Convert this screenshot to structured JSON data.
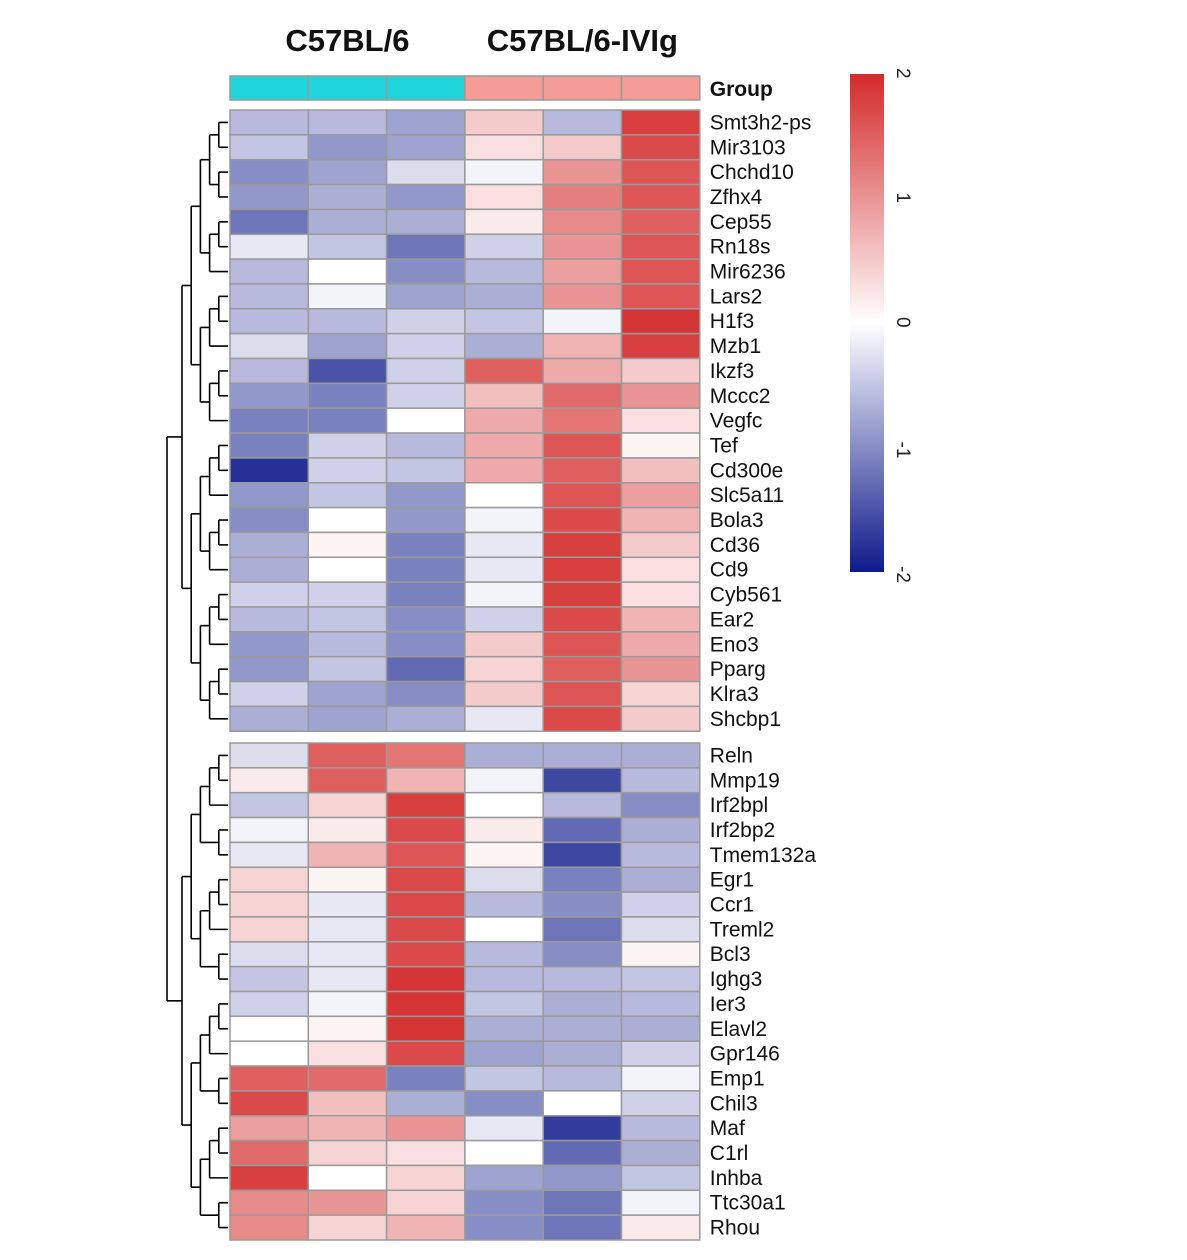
{
  "chart_data": {
    "type": "heatmap",
    "title": "",
    "column_groups": [
      {
        "label": "C57BL/6",
        "color": "#20d4dc",
        "columns": 3
      },
      {
        "label": "C57BL/6-IVIg",
        "color": "#f59c97",
        "columns": 3
      }
    ],
    "group_legend_label": "Group",
    "color_scale": {
      "min": -2,
      "max": 2,
      "low_color": "#0e1a8a",
      "mid_color": "#ffffff",
      "high_color": "#d42a2a",
      "ticks": [
        2,
        1,
        0,
        -1,
        -2
      ],
      "tick_labels": [
        "2",
        "1",
        "0",
        "-1",
        "-2"
      ]
    },
    "clusters": [
      {
        "rows": [
          "Smt3h2-ps",
          "Mir3103",
          "Chchd10",
          "Zfhx4",
          "Cep55",
          "Rn18s",
          "Mir6236",
          "Lars2",
          "H1f3",
          "Mzb1",
          "Ikzf3",
          "Mccc2",
          "Vegfc",
          "Tef",
          "Cd300e",
          "Slc5a11",
          "Bola3",
          "Cd36",
          "Cd9",
          "Cyb561",
          "Ear2",
          "Eno3",
          "Pparg",
          "Klra3",
          "Shcbp1"
        ],
        "values": [
          [
            -0.6,
            -0.6,
            -0.8,
            0.5,
            -0.6,
            1.8
          ],
          [
            -0.5,
            -0.9,
            -0.8,
            0.3,
            0.5,
            1.7
          ],
          [
            -1.0,
            -0.8,
            -0.3,
            -0.1,
            1.0,
            1.6
          ],
          [
            -0.9,
            -0.7,
            -0.9,
            0.3,
            1.2,
            1.6
          ],
          [
            -1.2,
            -0.7,
            -0.7,
            0.2,
            1.1,
            1.5
          ],
          [
            -0.2,
            -0.5,
            -1.2,
            -0.4,
            1.0,
            1.6
          ],
          [
            -0.6,
            0.0,
            -1.0,
            -0.6,
            0.9,
            1.6
          ],
          [
            -0.6,
            -0.1,
            -0.8,
            -0.7,
            1.0,
            1.6
          ],
          [
            -0.6,
            -0.6,
            -0.4,
            -0.5,
            -0.1,
            1.9
          ],
          [
            -0.3,
            -0.8,
            -0.4,
            -0.7,
            0.7,
            1.8
          ],
          [
            -0.6,
            -1.5,
            -0.4,
            1.5,
            0.8,
            0.5
          ],
          [
            -0.9,
            -1.1,
            -0.4,
            0.6,
            1.4,
            1.0
          ],
          [
            -1.1,
            -1.1,
            0.0,
            0.8,
            1.3,
            0.3
          ],
          [
            -1.1,
            -0.4,
            -0.6,
            0.8,
            1.6,
            0.1
          ],
          [
            -1.8,
            -0.4,
            -0.5,
            0.8,
            1.5,
            0.6
          ],
          [
            -0.9,
            -0.5,
            -0.9,
            0.0,
            1.6,
            0.9
          ],
          [
            -1.0,
            0.0,
            -0.9,
            -0.1,
            1.7,
            0.7
          ],
          [
            -0.7,
            0.1,
            -1.1,
            -0.2,
            1.8,
            0.5
          ],
          [
            -0.7,
            0.0,
            -1.1,
            -0.2,
            1.8,
            0.3
          ],
          [
            -0.4,
            -0.4,
            -1.1,
            -0.1,
            1.8,
            0.3
          ],
          [
            -0.6,
            -0.5,
            -1.0,
            -0.4,
            1.7,
            0.7
          ],
          [
            -0.9,
            -0.6,
            -1.0,
            0.5,
            1.6,
            0.8
          ],
          [
            -0.9,
            -0.5,
            -1.3,
            0.4,
            1.5,
            1.0
          ],
          [
            -0.4,
            -0.8,
            -1.0,
            0.5,
            1.6,
            0.4
          ],
          [
            -0.7,
            -0.8,
            -0.7,
            -0.2,
            1.7,
            0.5
          ]
        ]
      },
      {
        "rows": [
          "Reln",
          "Mmp19",
          "Irf2bpl",
          "Irf2bp2",
          "Tmem132a",
          "Egr1",
          "Ccr1",
          "Treml2",
          "Bcl3",
          "Ighg3",
          "Ier3",
          "Elavl2",
          "Gpr146",
          "Emp1",
          "Chil3",
          "Maf",
          "C1rl",
          "Inhba",
          "Ttc30a1",
          "Rhou"
        ],
        "values": [
          [
            -0.3,
            1.5,
            1.3,
            -0.7,
            -0.7,
            -0.7
          ],
          [
            0.2,
            1.5,
            0.7,
            -0.1,
            -1.6,
            -0.6
          ],
          [
            -0.5,
            0.4,
            1.8,
            0.0,
            -0.6,
            -1.0
          ],
          [
            -0.1,
            0.2,
            1.7,
            0.2,
            -1.3,
            -0.7
          ],
          [
            -0.2,
            0.7,
            1.6,
            0.1,
            -1.6,
            -0.6
          ],
          [
            0.4,
            0.1,
            1.7,
            -0.3,
            -1.1,
            -0.7
          ],
          [
            0.4,
            -0.2,
            1.7,
            -0.6,
            -1.0,
            -0.4
          ],
          [
            0.4,
            -0.2,
            1.7,
            0.0,
            -1.2,
            -0.3
          ],
          [
            -0.3,
            -0.2,
            1.7,
            -0.6,
            -1.0,
            0.1
          ],
          [
            -0.5,
            -0.2,
            1.9,
            -0.6,
            -0.6,
            -0.5
          ],
          [
            -0.4,
            -0.1,
            1.9,
            -0.5,
            -0.7,
            -0.6
          ],
          [
            0.0,
            0.1,
            1.9,
            -0.7,
            -0.7,
            -0.7
          ],
          [
            0.0,
            0.3,
            1.7,
            -0.8,
            -0.7,
            -0.4
          ],
          [
            1.5,
            1.4,
            -1.1,
            -0.5,
            -0.6,
            -0.1
          ],
          [
            1.7,
            0.6,
            -0.7,
            -1.0,
            0.0,
            -0.4
          ],
          [
            0.9,
            0.7,
            1.0,
            -0.2,
            -1.7,
            -0.6
          ],
          [
            1.4,
            0.4,
            0.3,
            0.0,
            -1.3,
            -0.7
          ],
          [
            1.8,
            0.0,
            0.4,
            -0.8,
            -0.9,
            -0.5
          ],
          [
            1.1,
            1.0,
            0.4,
            -1.0,
            -1.2,
            -0.1
          ],
          [
            1.1,
            0.4,
            0.7,
            -1.0,
            -1.2,
            0.2
          ]
        ]
      }
    ]
  }
}
